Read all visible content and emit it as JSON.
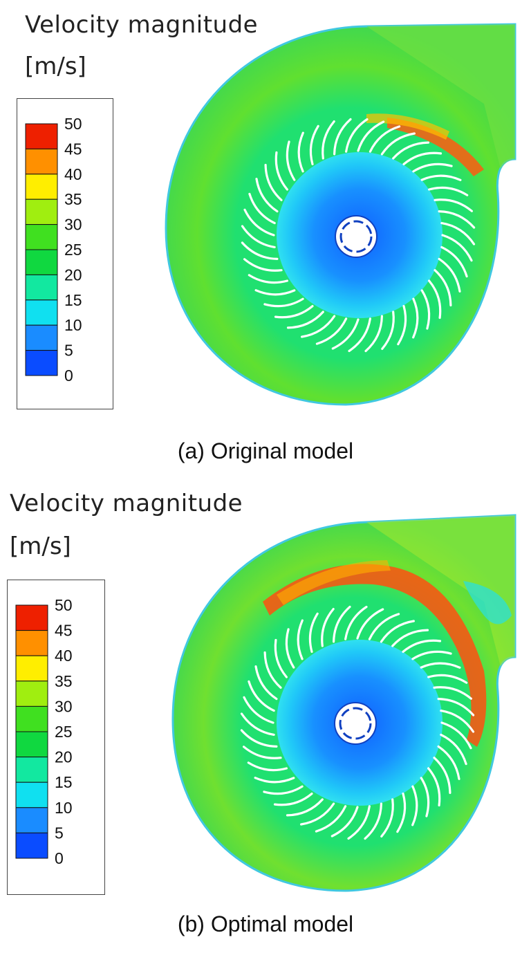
{
  "panels": [
    {
      "legend_title": "Velocity magnitude",
      "legend_unit": "[m/s]",
      "ticks": [
        "50",
        "45",
        "40",
        "35",
        "30",
        "25",
        "20",
        "15",
        "10",
        "5",
        "0"
      ],
      "caption": "(a) Original model",
      "flow": "original"
    },
    {
      "legend_title": "Velocity magnitude",
      "legend_unit": "[m/s]",
      "ticks": [
        "50",
        "45",
        "40",
        "35",
        "30",
        "25",
        "20",
        "15",
        "10",
        "5",
        "0"
      ],
      "caption": "(b) Optimal model",
      "flow": "optimal"
    }
  ],
  "colormap": [
    "#0000ff",
    "#0a4cff",
    "#1a8cff",
    "#10e0f0",
    "#12e8a0",
    "#10d840",
    "#40e020",
    "#a0ee10",
    "#ffee00",
    "#ff9000",
    "#ee2000"
  ],
  "blade_count": 44
}
